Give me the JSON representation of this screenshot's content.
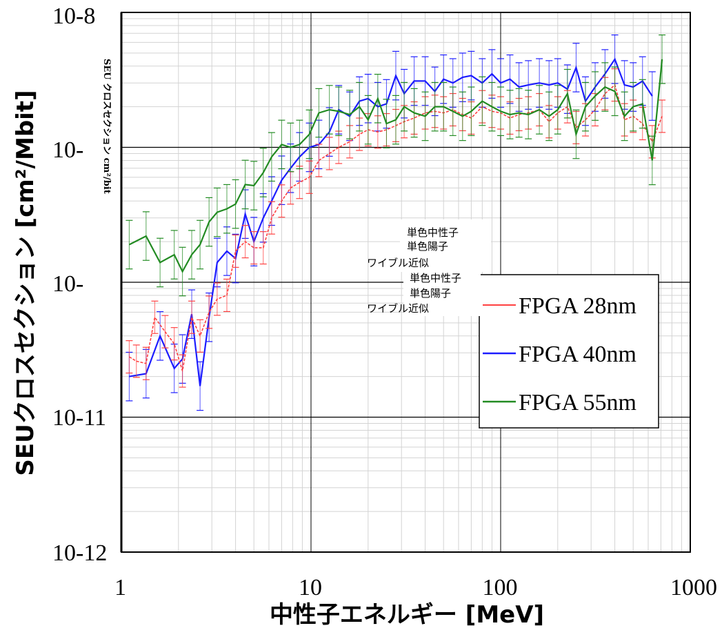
{
  "chart_data": {
    "type": "line",
    "xlabel": "中性子エネルギー [MeV]",
    "ylabel": "SEUクロスセクション [cm²/Mbit]",
    "x_scale": "log",
    "y_scale": "log",
    "xlim": [
      1,
      1000
    ],
    "ylim": [
      1e-12,
      1e-08
    ],
    "x_ticks": [
      "1",
      "10",
      "100",
      "1000"
    ],
    "y_ticks": [
      "10-12",
      "10-11",
      "10-",
      "10-",
      "10-8"
    ],
    "grid": true,
    "legend_position": "bottom-right",
    "series": [
      {
        "name": "FPGA 28nm",
        "color": "#ff4040",
        "x": [
          1.1,
          1.2,
          1.35,
          1.5,
          1.7,
          1.9,
          2.1,
          2.35,
          2.6,
          2.9,
          3.2,
          3.6,
          4.0,
          4.5,
          5.0,
          5.6,
          6.2,
          7.0,
          7.8,
          8.7,
          9.8,
          11,
          12.5,
          14,
          16,
          18,
          20,
          22.5,
          25,
          28,
          31,
          35,
          40,
          45,
          50,
          56,
          63,
          70,
          80,
          90,
          100,
          112,
          125,
          140,
          160,
          180,
          200,
          225,
          250,
          280,
          315,
          355,
          400,
          450,
          500,
          560,
          630,
          710
        ],
        "values": [
          2.8e-11,
          2.6e-11,
          2.5e-11,
          5.5e-11,
          4.3e-11,
          3.5e-11,
          2.2e-11,
          5.5e-11,
          4e-11,
          6e-11,
          7.5e-11,
          8e-11,
          1.7e-10,
          2e-10,
          1.8e-10,
          1.8e-10,
          3e-10,
          4e-10,
          5e-10,
          5.5e-10,
          6e-10,
          8e-10,
          9e-10,
          1e-09,
          1.1e-09,
          1.25e-09,
          1.35e-09,
          1.3e-09,
          1.35e-09,
          1.45e-09,
          1.55e-09,
          1.65e-09,
          1.8e-09,
          1.85e-09,
          1.8e-09,
          1.9e-09,
          1.75e-09,
          1.65e-09,
          2e-09,
          1.85e-09,
          1.8e-09,
          1.65e-09,
          1.75e-09,
          1.8e-09,
          1.9e-09,
          1.55e-09,
          1.8e-09,
          2e-09,
          1.4e-09,
          1.6e-09,
          1.9e-09,
          2.5e-09,
          2.9e-09,
          1.6e-09,
          1.7e-09,
          1.5e-09,
          1.1e-09,
          1.7e-09
        ]
      },
      {
        "name": "FPGA 40nm",
        "color": "#1c1cff",
        "x": [
          1.1,
          1.35,
          1.6,
          1.9,
          2.1,
          2.35,
          2.6,
          2.9,
          3.2,
          3.6,
          4.0,
          4.5,
          5.0,
          5.6,
          6.2,
          7.0,
          7.8,
          8.7,
          9.8,
          11,
          12.5,
          14,
          16,
          18,
          20,
          22.5,
          25,
          28,
          31,
          35,
          40,
          45,
          50,
          56,
          63,
          70,
          80,
          90,
          100,
          112,
          125,
          140,
          160,
          180,
          200,
          225,
          250,
          280,
          315,
          355,
          400,
          450,
          500,
          560,
          630
        ],
        "values": [
          2e-11,
          2.1e-11,
          4e-11,
          2.3e-11,
          2.7e-11,
          5.8e-11,
          1.7e-11,
          5.5e-11,
          1.4e-10,
          1.7e-10,
          1.5e-10,
          3.2e-10,
          2e-10,
          3e-10,
          4e-10,
          5.7e-10,
          7e-10,
          8.5e-10,
          1e-09,
          1.05e-09,
          1.3e-09,
          1.9e-09,
          1.7e-09,
          2.2e-09,
          2.3e-09,
          2e-09,
          2.1e-09,
          3.4e-09,
          2.5e-09,
          3.1e-09,
          3.1e-09,
          2.6e-09,
          3.2e-09,
          3e-09,
          3.3e-09,
          3.4e-09,
          3e-09,
          3.5e-09,
          3e-09,
          3.2e-09,
          2.8e-09,
          2.9e-09,
          3e-09,
          2.9e-09,
          3e-09,
          2.7e-09,
          3.9e-09,
          2.2e-09,
          2.8e-09,
          3.5e-09,
          4.5e-09,
          2.9e-09,
          2.8e-09,
          3.1e-09,
          2.4e-09
        ]
      },
      {
        "name": "FPGA 55nm",
        "color": "#228b22",
        "x": [
          1.1,
          1.35,
          1.6,
          1.9,
          2.1,
          2.35,
          2.6,
          2.9,
          3.2,
          3.6,
          4.0,
          4.5,
          5.0,
          5.6,
          6.2,
          7.0,
          7.8,
          8.7,
          9.8,
          11,
          12.5,
          14,
          16,
          18,
          20,
          22.5,
          25,
          28,
          31,
          35,
          40,
          45,
          50,
          56,
          63,
          70,
          80,
          90,
          100,
          112,
          125,
          140,
          160,
          180,
          200,
          225,
          250,
          280,
          315,
          355,
          400,
          450,
          500,
          560,
          630,
          710
        ],
        "values": [
          1.9e-10,
          2.2e-10,
          1.4e-10,
          1.6e-10,
          1.2e-10,
          1.6e-10,
          1.9e-10,
          2.8e-10,
          3.3e-10,
          3.5e-10,
          3.8e-10,
          5.3e-10,
          5.2e-10,
          6.5e-10,
          8.5e-10,
          1.05e-09,
          1e-09,
          1.05e-09,
          1.25e-09,
          1.8e-09,
          1.9e-09,
          1.85e-09,
          1.75e-09,
          2e-09,
          1.6e-09,
          2.3e-09,
          1.5e-09,
          1.6e-09,
          2e-09,
          1.8e-09,
          1.7e-09,
          2e-09,
          2e-09,
          1.85e-09,
          1.7e-09,
          1.85e-09,
          2.2e-09,
          2e-09,
          1.85e-09,
          1.75e-09,
          1.8e-09,
          1.75e-09,
          1.9e-09,
          1.7e-09,
          1.9e-09,
          2.5e-09,
          1.25e-09,
          2e-09,
          2.4e-09,
          2.8e-09,
          2.6e-09,
          1.7e-09,
          2e-09,
          2.1e-09,
          8e-10,
          4.5e-09
        ]
      }
    ],
    "overlay_labels": {
      "upper": [
        "単色中性子",
        "単色陽子",
        "ワイブル近似"
      ],
      "lower": [
        "単色中性子",
        "単色陽子",
        "ワイブル近似"
      ],
      "vertical": "SEU クロスセクション cm²/bit"
    }
  }
}
